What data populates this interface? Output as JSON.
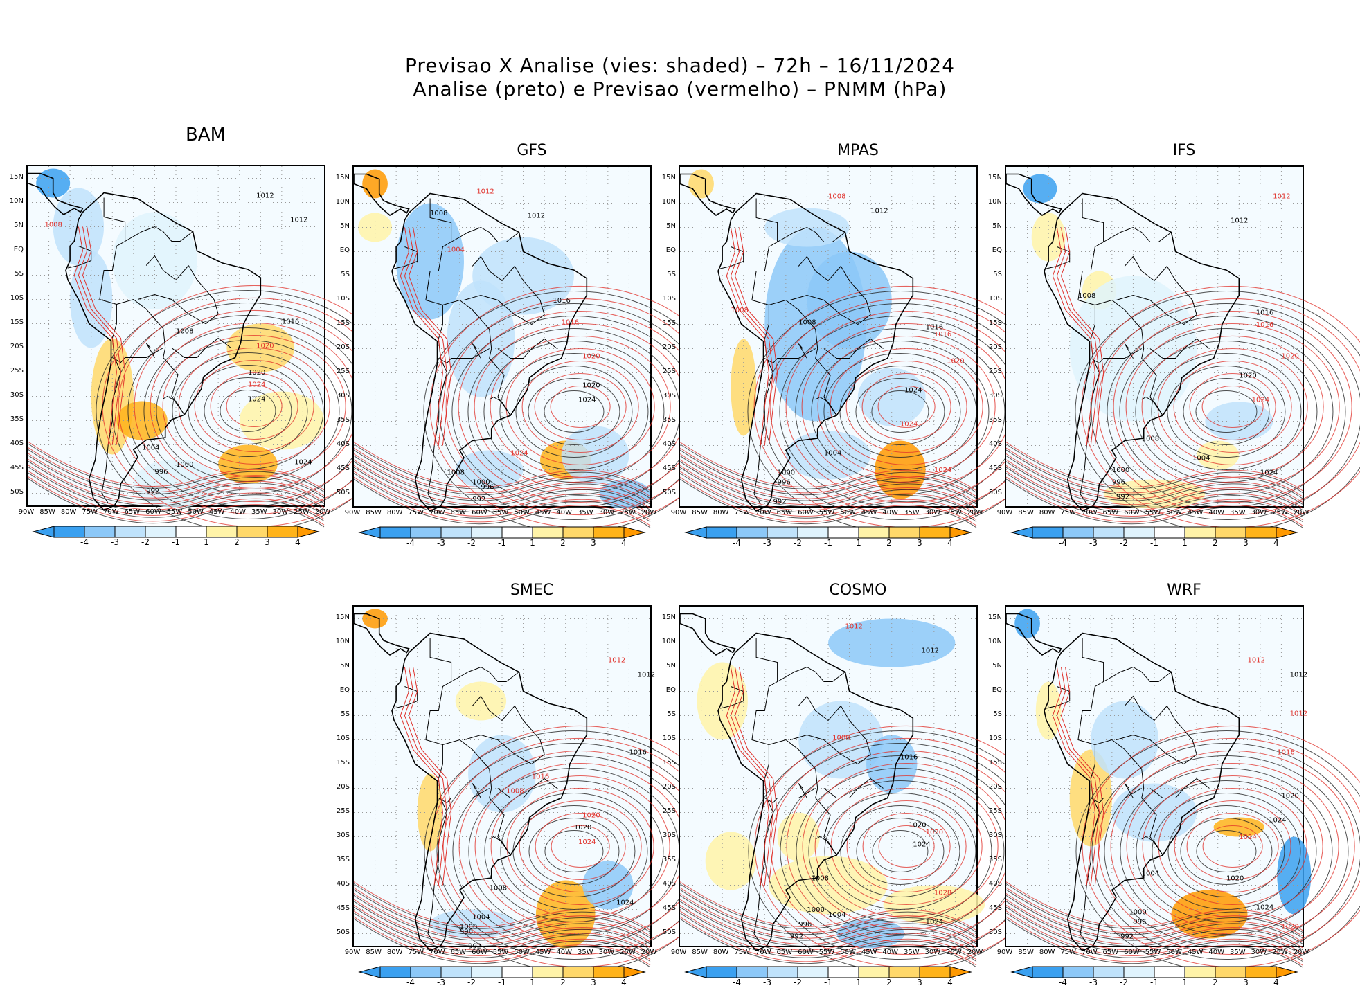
{
  "title": {
    "line1": "Previsao X Analise (vies: shaded) – 72h – 16/11/2024",
    "line2": "Analise (preto) e Previsao (vermelho) – PNMM (hPa)"
  },
  "axes": {
    "lat_labels": [
      "15N",
      "10N",
      "5N",
      "EQ",
      "5S",
      "10S",
      "15S",
      "20S",
      "25S",
      "30S",
      "35S",
      "40S",
      "45S",
      "50S"
    ],
    "lon_labels": [
      "90W",
      "85W",
      "80W",
      "75W",
      "70W",
      "65W",
      "60W",
      "55W",
      "50W",
      "45W",
      "40W",
      "35W",
      "30W",
      "25W",
      "20W"
    ]
  },
  "colorbar": {
    "labels": [
      "-4",
      "-3",
      "-2",
      "-1",
      "1",
      "2",
      "3",
      "4"
    ],
    "colors": [
      "#3aa0f0",
      "#8cc8f8",
      "#bfe2fb",
      "#dff3fd",
      "#ffffff",
      "#fff3a8",
      "#ffd86a",
      "#ffb31a",
      "#ff9900"
    ]
  },
  "legend_colors": {
    "analysis": "#000000",
    "forecast": "#e0302a"
  },
  "panels": [
    {
      "name": "BAM",
      "isobars": [
        {
          "t": "1012",
          "red": false
        },
        {
          "t": "1008",
          "red": true
        },
        {
          "t": "1012",
          "red": false
        },
        {
          "t": "1016",
          "red": false
        },
        {
          "t": "1020",
          "red": true
        },
        {
          "t": "1020",
          "red": false
        },
        {
          "t": "1024",
          "red": true
        },
        {
          "t": "1024",
          "red": false
        },
        {
          "t": "1008",
          "red": false
        },
        {
          "t": "1004",
          "red": false
        },
        {
          "t": "1000",
          "red": false
        },
        {
          "t": "996",
          "red": false
        },
        {
          "t": "992",
          "red": false
        },
        {
          "t": "1024",
          "red": false
        }
      ]
    },
    {
      "name": "GFS",
      "isobars": [
        {
          "t": "1012",
          "red": true
        },
        {
          "t": "1012",
          "red": false
        },
        {
          "t": "1008",
          "red": false
        },
        {
          "t": "1004",
          "red": true
        },
        {
          "t": "1016",
          "red": false
        },
        {
          "t": "1016",
          "red": true
        },
        {
          "t": "1020",
          "red": true
        },
        {
          "t": "1020",
          "red": false
        },
        {
          "t": "1024",
          "red": false
        },
        {
          "t": "1024",
          "red": true
        },
        {
          "t": "1008",
          "red": false
        },
        {
          "t": "1000",
          "red": false
        },
        {
          "t": "996",
          "red": false
        },
        {
          "t": "992",
          "red": false
        }
      ]
    },
    {
      "name": "MPAS",
      "isobars": [
        {
          "t": "1008",
          "red": true
        },
        {
          "t": "1012",
          "red": false
        },
        {
          "t": "1008",
          "red": true
        },
        {
          "t": "1008",
          "red": false
        },
        {
          "t": "1016",
          "red": false
        },
        {
          "t": "1016",
          "red": true
        },
        {
          "t": "1020",
          "red": true
        },
        {
          "t": "1024",
          "red": false
        },
        {
          "t": "1024",
          "red": true
        },
        {
          "t": "1024",
          "red": true
        },
        {
          "t": "1004",
          "red": false
        },
        {
          "t": "1000",
          "red": false
        },
        {
          "t": "996",
          "red": false
        },
        {
          "t": "992",
          "red": false
        }
      ]
    },
    {
      "name": "IFS",
      "isobars": [
        {
          "t": "1012",
          "red": true
        },
        {
          "t": "1012",
          "red": false
        },
        {
          "t": "1008",
          "red": false
        },
        {
          "t": "1016",
          "red": false
        },
        {
          "t": "1016",
          "red": true
        },
        {
          "t": "1020",
          "red": true
        },
        {
          "t": "1020",
          "red": false
        },
        {
          "t": "1024",
          "red": true
        },
        {
          "t": "1024",
          "red": false
        },
        {
          "t": "1008",
          "red": false
        },
        {
          "t": "1004",
          "red": false
        },
        {
          "t": "1000",
          "red": false
        },
        {
          "t": "996",
          "red": false
        },
        {
          "t": "992",
          "red": false
        }
      ]
    },
    {
      "name": "SMEC",
      "isobars": [
        {
          "t": "1012",
          "red": true
        },
        {
          "t": "1012",
          "red": false
        },
        {
          "t": "1016",
          "red": false
        },
        {
          "t": "1016",
          "red": true
        },
        {
          "t": "1020",
          "red": true
        },
        {
          "t": "1020",
          "red": false
        },
        {
          "t": "1024",
          "red": true
        },
        {
          "t": "1024",
          "red": false
        },
        {
          "t": "1008",
          "red": false
        },
        {
          "t": "1004",
          "red": false
        },
        {
          "t": "1000",
          "red": false
        },
        {
          "t": "996",
          "red": false
        },
        {
          "t": "992",
          "red": false
        },
        {
          "t": "1008",
          "red": true
        }
      ]
    },
    {
      "name": "COSMO",
      "isobars": [
        {
          "t": "1012",
          "red": true
        },
        {
          "t": "1012",
          "red": false
        },
        {
          "t": "1008",
          "red": true
        },
        {
          "t": "1016",
          "red": false
        },
        {
          "t": "1020",
          "red": false
        },
        {
          "t": "1020",
          "red": true
        },
        {
          "t": "1024",
          "red": false
        },
        {
          "t": "1028",
          "red": true
        },
        {
          "t": "1024",
          "red": false
        },
        {
          "t": "1008",
          "red": false
        },
        {
          "t": "1004",
          "red": false
        },
        {
          "t": "1000",
          "red": false
        },
        {
          "t": "996",
          "red": false
        },
        {
          "t": "992",
          "red": false
        }
      ]
    },
    {
      "name": "WRF",
      "isobars": [
        {
          "t": "1012",
          "red": true
        },
        {
          "t": "1012",
          "red": false
        },
        {
          "t": "1012",
          "red": true
        },
        {
          "t": "1016",
          "red": true
        },
        {
          "t": "1020",
          "red": false
        },
        {
          "t": "1024",
          "red": false
        },
        {
          "t": "1024",
          "red": true
        },
        {
          "t": "1020",
          "red": false
        },
        {
          "t": "1024",
          "red": false
        },
        {
          "t": "1004",
          "red": false
        },
        {
          "t": "1000",
          "red": false
        },
        {
          "t": "996",
          "red": false
        },
        {
          "t": "992",
          "red": false
        },
        {
          "t": "1020",
          "red": true
        }
      ]
    }
  ]
}
